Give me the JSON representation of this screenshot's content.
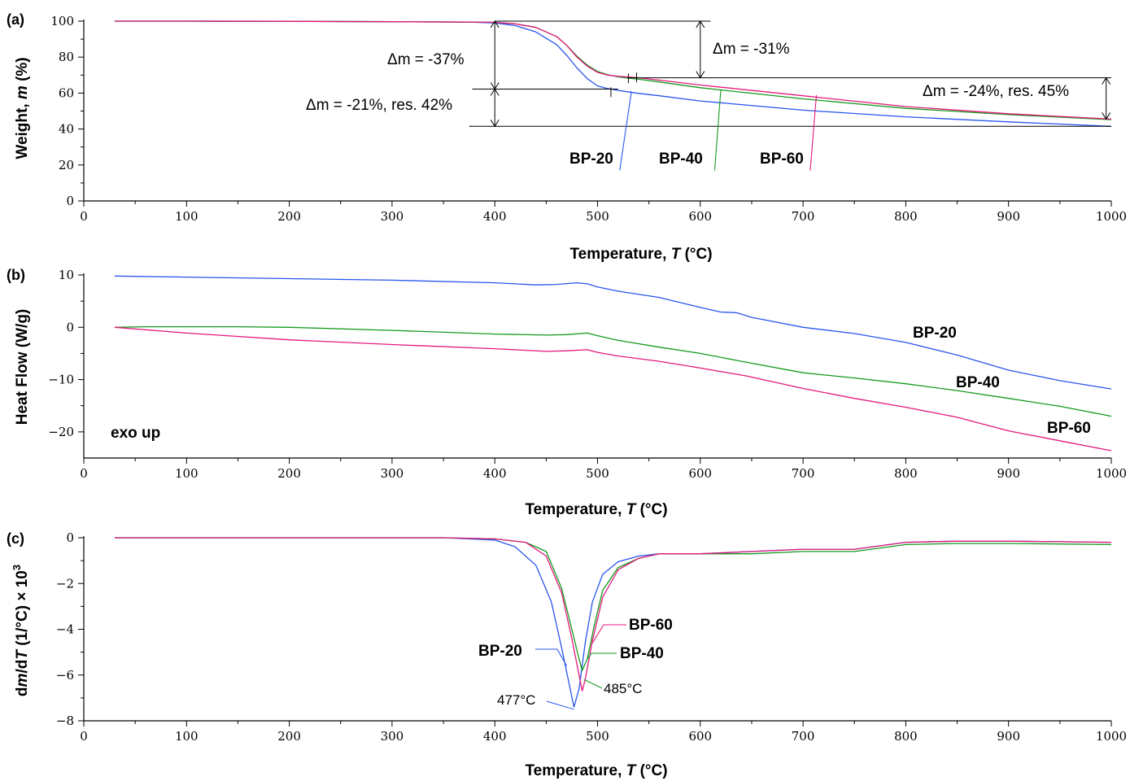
{
  "colors": {
    "BP-20": "#2855ee",
    "BP-40": "#159a1f",
    "BP-60": "#e4197b",
    "axis": "#000000"
  },
  "chart_data": [
    {
      "id": "a",
      "type": "line",
      "panel_label": "(a)",
      "xlabel": "Temperature, T (°C)",
      "ylabel": "Weight, m (%)",
      "xlim": [
        0,
        1000
      ],
      "ylim": [
        0,
        100
      ],
      "xticks": [
        0,
        100,
        200,
        300,
        400,
        500,
        600,
        700,
        800,
        900,
        1000
      ],
      "yticks": [
        0,
        20,
        40,
        60,
        80,
        100
      ],
      "series": [
        {
          "name": "BP-20",
          "x": [
            30,
            100,
            200,
            300,
            380,
            400,
            420,
            440,
            460,
            470,
            480,
            490,
            500,
            510,
            520,
            540,
            560,
            600,
            700,
            800,
            900,
            1000
          ],
          "y": [
            100,
            100,
            99.9,
            99.7,
            99.4,
            99.0,
            97.5,
            94,
            87,
            81,
            74,
            68,
            64,
            62.5,
            61.5,
            59.8,
            58.5,
            55.6,
            50.5,
            46.8,
            44,
            41.5
          ]
        },
        {
          "name": "BP-40",
          "x": [
            30,
            100,
            200,
            300,
            380,
            400,
            420,
            440,
            460,
            470,
            480,
            490,
            500,
            510,
            520,
            530,
            540,
            560,
            600,
            700,
            800,
            900,
            1000
          ],
          "y": [
            100,
            100,
            99.9,
            99.7,
            99.5,
            99.3,
            98.5,
            96.5,
            91.5,
            86.5,
            80.5,
            75.5,
            72,
            70.2,
            69,
            68.3,
            67.7,
            66.2,
            63,
            56.8,
            51.5,
            48,
            45.2
          ]
        },
        {
          "name": "BP-60",
          "x": [
            30,
            100,
            200,
            300,
            380,
            400,
            420,
            440,
            460,
            470,
            480,
            490,
            500,
            510,
            520,
            530,
            540,
            560,
            600,
            700,
            800,
            900,
            1000
          ],
          "y": [
            100,
            100,
            99.9,
            99.7,
            99.5,
            99.3,
            98.5,
            96.5,
            91.5,
            86.5,
            80,
            75,
            71.5,
            70,
            69.3,
            68.9,
            68.5,
            67.2,
            64.5,
            58.5,
            52.5,
            48.5,
            45.5
          ]
        }
      ],
      "annotations": [
        {
          "text": "Δm = -37%"
        },
        {
          "text": "Δm = -31%"
        },
        {
          "text": "Δm = -21%, res. 42%"
        },
        {
          "text": "Δm = -24%, res. 45%"
        }
      ],
      "series_labels": [
        "BP-20",
        "BP-40",
        "BP-60"
      ]
    },
    {
      "id": "b",
      "type": "line",
      "panel_label": "(b)",
      "xlabel": "Temperature, T (°C)",
      "ylabel": "Heat Flow (W/g)",
      "xlim": [
        0,
        1000
      ],
      "ylim": [
        -25,
        10
      ],
      "xticks": [
        0,
        100,
        200,
        300,
        400,
        500,
        600,
        700,
        800,
        900,
        1000
      ],
      "yticks": [
        -20,
        -10,
        0,
        10
      ],
      "note": "exo up",
      "series": [
        {
          "name": "BP-20",
          "x": [
            30,
            100,
            200,
            300,
            400,
            440,
            460,
            480,
            490,
            500,
            520,
            560,
            600,
            620,
            635,
            650,
            700,
            750,
            800,
            850,
            900,
            950,
            1000
          ],
          "y": [
            9.8,
            9.6,
            9.3,
            9,
            8.5,
            8.1,
            8.2,
            8.5,
            8.3,
            7.7,
            6.9,
            5.7,
            3.8,
            2.9,
            2.8,
            1.9,
            0,
            -1.2,
            -2.9,
            -5.3,
            -8.2,
            -10.2,
            -11.8
          ]
        },
        {
          "name": "BP-40",
          "x": [
            30,
            60,
            100,
            150,
            200,
            300,
            400,
            450,
            470,
            490,
            500,
            520,
            560,
            600,
            640,
            700,
            750,
            800,
            850,
            900,
            950,
            1000
          ],
          "y": [
            0,
            0.1,
            0.1,
            0.1,
            0,
            -0.6,
            -1.3,
            -1.5,
            -1.4,
            -1.1,
            -1.6,
            -2.5,
            -3.8,
            -5,
            -6.5,
            -8.7,
            -9.7,
            -10.8,
            -12.1,
            -13.6,
            -15.1,
            -17
          ]
        },
        {
          "name": "BP-60",
          "x": [
            30,
            100,
            200,
            300,
            400,
            450,
            470,
            490,
            500,
            520,
            560,
            600,
            630,
            645,
            700,
            750,
            800,
            850,
            900,
            950,
            1000
          ],
          "y": [
            0,
            -1.1,
            -2.4,
            -3.3,
            -4.1,
            -4.6,
            -4.5,
            -4.3,
            -4.8,
            -5.5,
            -6.5,
            -7.8,
            -8.8,
            -9.3,
            -11.7,
            -13.6,
            -15.3,
            -17.2,
            -19.8,
            -21.7,
            -23.6
          ]
        }
      ],
      "series_labels": [
        "BP-20",
        "BP-40",
        "BP-60"
      ]
    },
    {
      "id": "c",
      "type": "line",
      "panel_label": "(c)",
      "xlabel": "Temperature, T (°C)",
      "ylabel": "dm/dT (1/°C) × 10³",
      "xlim": [
        0,
        1000
      ],
      "ylim": [
        -8,
        0
      ],
      "xticks": [
        0,
        100,
        200,
        300,
        400,
        500,
        600,
        700,
        800,
        900,
        1000
      ],
      "yticks": [
        -8,
        -6,
        -4,
        -2,
        0
      ],
      "series": [
        {
          "name": "BP-20",
          "x": [
            30,
            200,
            350,
            400,
            420,
            440,
            455,
            465,
            472,
            477,
            482,
            488,
            495,
            505,
            520,
            540,
            560,
            600,
            650,
            700,
            750,
            800,
            850,
            900,
            1000
          ],
          "y": [
            0,
            0,
            0,
            -0.1,
            -0.4,
            -1.2,
            -2.8,
            -4.8,
            -6.3,
            -7.4,
            -6.6,
            -4.6,
            -2.8,
            -1.6,
            -1.05,
            -0.8,
            -0.7,
            -0.7,
            -0.6,
            -0.5,
            -0.5,
            -0.2,
            -0.15,
            -0.15,
            -0.2
          ]
        },
        {
          "name": "BP-40",
          "x": [
            30,
            200,
            350,
            400,
            430,
            450,
            465,
            475,
            482,
            485,
            490,
            497,
            505,
            520,
            540,
            560,
            600,
            650,
            700,
            750,
            800,
            850,
            900,
            1000
          ],
          "y": [
            0,
            0,
            0,
            -0.05,
            -0.2,
            -0.6,
            -2.2,
            -4,
            -5.3,
            -5.8,
            -5.3,
            -3.8,
            -2.3,
            -1.3,
            -0.9,
            -0.7,
            -0.7,
            -0.7,
            -0.6,
            -0.6,
            -0.3,
            -0.25,
            -0.25,
            -0.3
          ]
        },
        {
          "name": "BP-60",
          "x": [
            30,
            200,
            350,
            400,
            430,
            450,
            465,
            475,
            482,
            485,
            488,
            495,
            505,
            520,
            540,
            560,
            600,
            650,
            700,
            750,
            800,
            850,
            900,
            1000
          ],
          "y": [
            0,
            0,
            0,
            -0.05,
            -0.2,
            -0.8,
            -2.4,
            -4.4,
            -6,
            -6.7,
            -6.2,
            -4.5,
            -2.6,
            -1.4,
            -0.9,
            -0.7,
            -0.7,
            -0.6,
            -0.5,
            -0.5,
            -0.2,
            -0.15,
            -0.15,
            -0.2
          ]
        }
      ],
      "annotations": [
        {
          "text": "477°C"
        },
        {
          "text": "485°C"
        }
      ],
      "series_labels": [
        "BP-20",
        "BP-40",
        "BP-60"
      ]
    }
  ]
}
